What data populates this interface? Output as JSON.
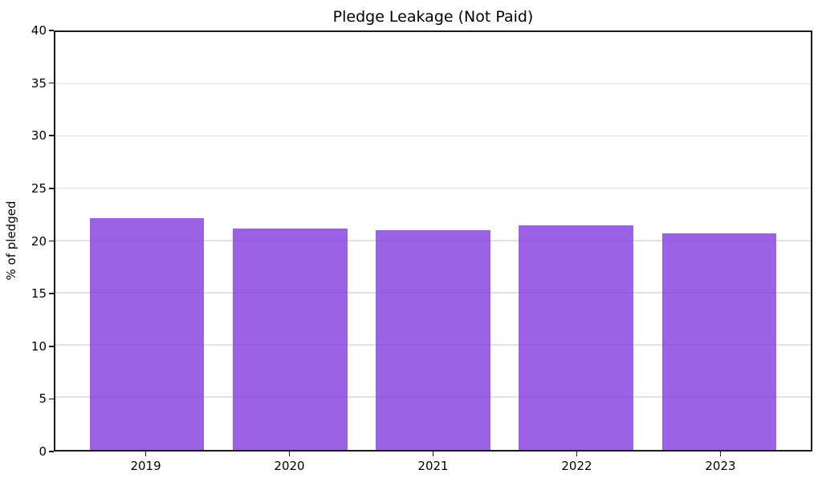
{
  "chart_data": {
    "type": "bar",
    "title": "Pledge Leakage (Not Paid)",
    "categories": [
      "2019",
      "2020",
      "2021",
      "2022",
      "2023"
    ],
    "values": [
      22.2,
      21.2,
      21.0,
      21.5,
      20.7
    ],
    "xlabel": "",
    "ylabel": "% of pledged",
    "ylim": [
      0,
      40
    ],
    "yticks": [
      0,
      5,
      10,
      15,
      20,
      25,
      30,
      35,
      40
    ],
    "grid": "horizontal",
    "gridline_color": "#e2e2e2",
    "legend_position": "none",
    "bar_color": "#8A46E2",
    "bar_opacity": 0.85,
    "bar_width_fraction": 0.8,
    "axes_box": true,
    "background_color": "#ffffff",
    "text_color": "#000000"
  }
}
